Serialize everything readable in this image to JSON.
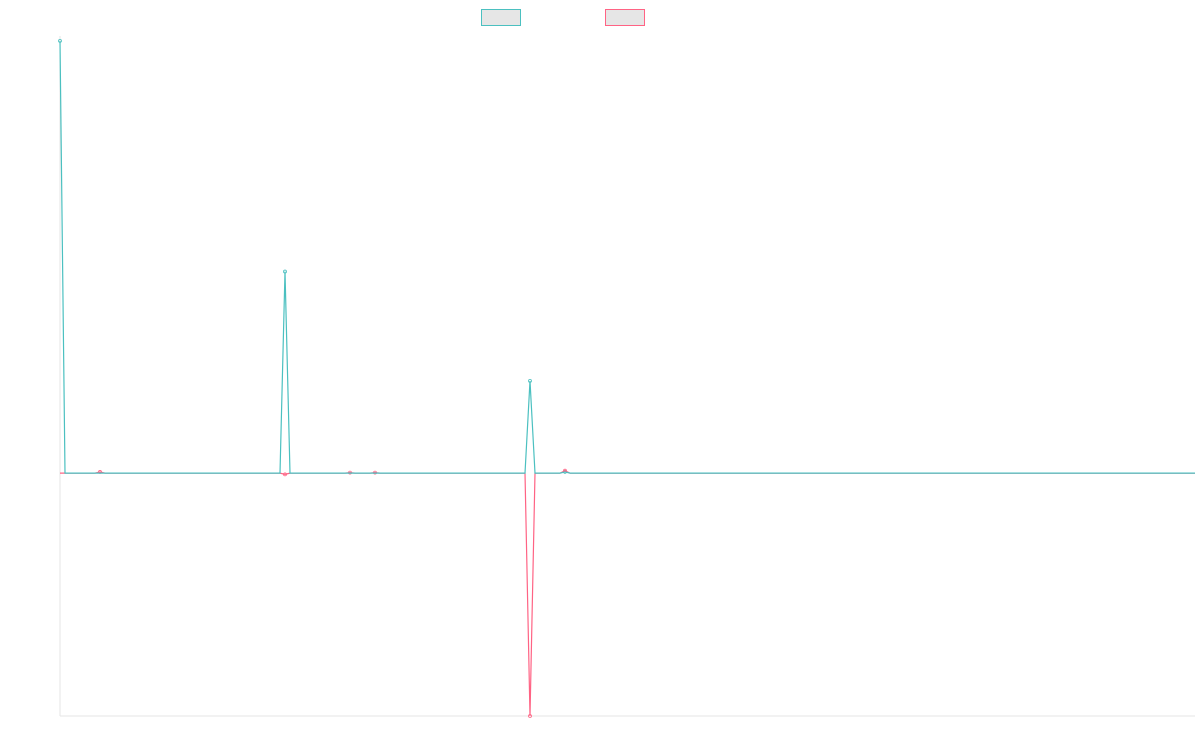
{
  "chart_data": {
    "type": "line",
    "title": "",
    "xlabel": "",
    "ylabel": "",
    "grid": false,
    "legend": {
      "placement": "top-center",
      "entries": [
        {
          "label": "",
          "color": "#4bc0c0"
        },
        {
          "label": "",
          "color": "#ff6384"
        }
      ]
    },
    "ylim": [
      -10,
      18
    ],
    "x": [
      0,
      1,
      2,
      3,
      4,
      5,
      6,
      7,
      8,
      9,
      10,
      11,
      12,
      13,
      14,
      15,
      16,
      17,
      18,
      19,
      20,
      21,
      22,
      23,
      24,
      25,
      26,
      27,
      28,
      29,
      30,
      31,
      32,
      33,
      34,
      35,
      36,
      37,
      38,
      39,
      40,
      41,
      42,
      43,
      44,
      45,
      46,
      47,
      48,
      49,
      50,
      51,
      52,
      53,
      54,
      55,
      56,
      57,
      58,
      59,
      60,
      61,
      62,
      63,
      64,
      65,
      66,
      67,
      68,
      69,
      70,
      71,
      72,
      73,
      74,
      75,
      76,
      77,
      78,
      79,
      80,
      81,
      82,
      83,
      84,
      85,
      86,
      87,
      88,
      89,
      90,
      91,
      92,
      93,
      94,
      95,
      96,
      97,
      98,
      99,
      100,
      101,
      102,
      103,
      104,
      105,
      106,
      107,
      108,
      109,
      110,
      111,
      112,
      113,
      114,
      115,
      116,
      117,
      118,
      119,
      120,
      121,
      122,
      123,
      124,
      125,
      126,
      127,
      128,
      129,
      130,
      131,
      132,
      133,
      134,
      135,
      136,
      137,
      138,
      139,
      140,
      141,
      142,
      143,
      144,
      145,
      146,
      147,
      148,
      149,
      150,
      151,
      152,
      153,
      154,
      155,
      156,
      157,
      158,
      159,
      160,
      161,
      162,
      163,
      164,
      165,
      166,
      167,
      168,
      169,
      170,
      171,
      172,
      173,
      174,
      175,
      176,
      177,
      178,
      179,
      180,
      181,
      182,
      183,
      184,
      185,
      186,
      187,
      188,
      189,
      190,
      191,
      192,
      193,
      194,
      195,
      196,
      197,
      198,
      199,
      200,
      201,
      202,
      203,
      204,
      205,
      206,
      207,
      208,
      209,
      210,
      211,
      212,
      213,
      214,
      215,
      216,
      217,
      218,
      219,
      220,
      221,
      222,
      223,
      224,
      225,
      226,
      227
    ],
    "series": [
      {
        "color": "#4bc0c0",
        "spikes": [
          {
            "x": 0,
            "y": 17.8
          },
          {
            "x": 45,
            "y": 8.3
          },
          {
            "x": 94,
            "y": 3.8
          },
          {
            "x": 101,
            "y": 0.05
          }
        ],
        "baseline": 0
      },
      {
        "color": "#ff6384",
        "spikes": [
          {
            "x": 8,
            "y": 0.05
          },
          {
            "x": 45,
            "y": -0.05
          },
          {
            "x": 58,
            "y": 0.02
          },
          {
            "x": 63,
            "y": 0.02
          },
          {
            "x": 94,
            "y": -10
          },
          {
            "x": 101,
            "y": 0.1
          }
        ],
        "baseline": 0
      }
    ]
  }
}
